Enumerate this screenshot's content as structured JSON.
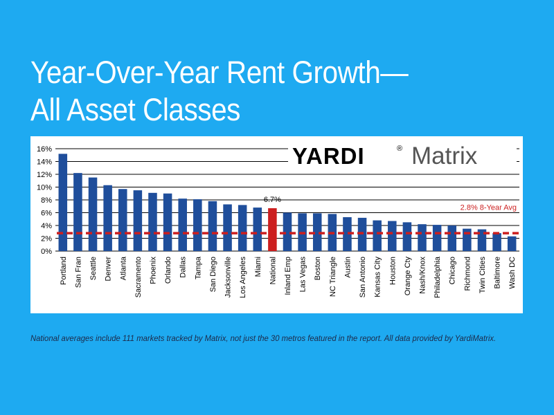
{
  "title": {
    "line1": "Year-Over-Year Rent Growth—",
    "line2": "All Asset Classes"
  },
  "logo": {
    "brand": "YARDI",
    "mark": "®",
    "product": "Matrix"
  },
  "footnote": "National averages include 111 markets tracked by Matrix, not just the 30 metros featured in the report. All data provided by YardiMatrix.",
  "colors": {
    "background": "#1eaaf1",
    "bar": "#1f4e9b",
    "highlight_bar": "#cc1f1f",
    "average_line": "#cc1f1f"
  },
  "chart_data": {
    "type": "bar",
    "title": "",
    "xlabel": "",
    "ylabel": "",
    "ylim": [
      0,
      16
    ],
    "y_ticks": [
      "0%",
      "2%",
      "4%",
      "6%",
      "8%",
      "10%",
      "12%",
      "14%",
      "16%"
    ],
    "grid": true,
    "categories": [
      "Portland",
      "San Fran",
      "Seattle",
      "Denver",
      "Atlanta",
      "Sacramento",
      "Phoenix",
      "Orlando",
      "Dallas",
      "Tampa",
      "San Diego",
      "Jacksonville",
      "Los Angeles",
      "Miami",
      "National",
      "Inland Emp",
      "Las Vegas",
      "Boston",
      "NC Triangle",
      "Austin",
      "San Antonio",
      "Kansas City",
      "Houston",
      "Orange Cty",
      "Nash/Knox",
      "Philadelphia",
      "Chicago",
      "Richmond",
      "Twin Cities",
      "Baltimore",
      "Wash DC"
    ],
    "values": [
      15.2,
      12.2,
      11.5,
      10.3,
      9.7,
      9.5,
      9.1,
      9.0,
      8.2,
      8.1,
      7.8,
      7.3,
      7.2,
      6.8,
      6.7,
      6.0,
      5.9,
      5.9,
      5.8,
      5.3,
      5.2,
      4.8,
      4.7,
      4.5,
      4.2,
      4.1,
      4.0,
      3.5,
      3.4,
      2.8,
      2.3
    ],
    "highlight_category": "National",
    "highlight_label": "6.7%",
    "average": {
      "value": 2.8,
      "label": "2.8% 8-Year Avg"
    }
  }
}
